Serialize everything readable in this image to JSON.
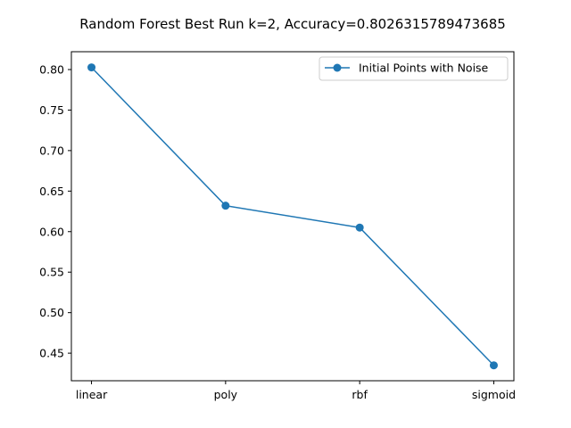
{
  "chart_data": {
    "type": "line",
    "title": "Random Forest Best Run k=2, Accuracy=0.8026315789473685",
    "xlabel": "",
    "ylabel": "",
    "categories": [
      "linear",
      "poly",
      "rbf",
      "sigmoid"
    ],
    "series": [
      {
        "name": "Initial Points with Noise",
        "values": [
          0.8026315789473685,
          0.632,
          0.605,
          0.435
        ],
        "color": "#1f77b4",
        "marker": "circle"
      }
    ],
    "ylim": [
      0.416,
      0.822
    ],
    "yticks": [
      "0.45",
      "0.50",
      "0.55",
      "0.60",
      "0.65",
      "0.70",
      "0.75",
      "0.80"
    ],
    "grid": false,
    "legend_position": "top-right"
  }
}
